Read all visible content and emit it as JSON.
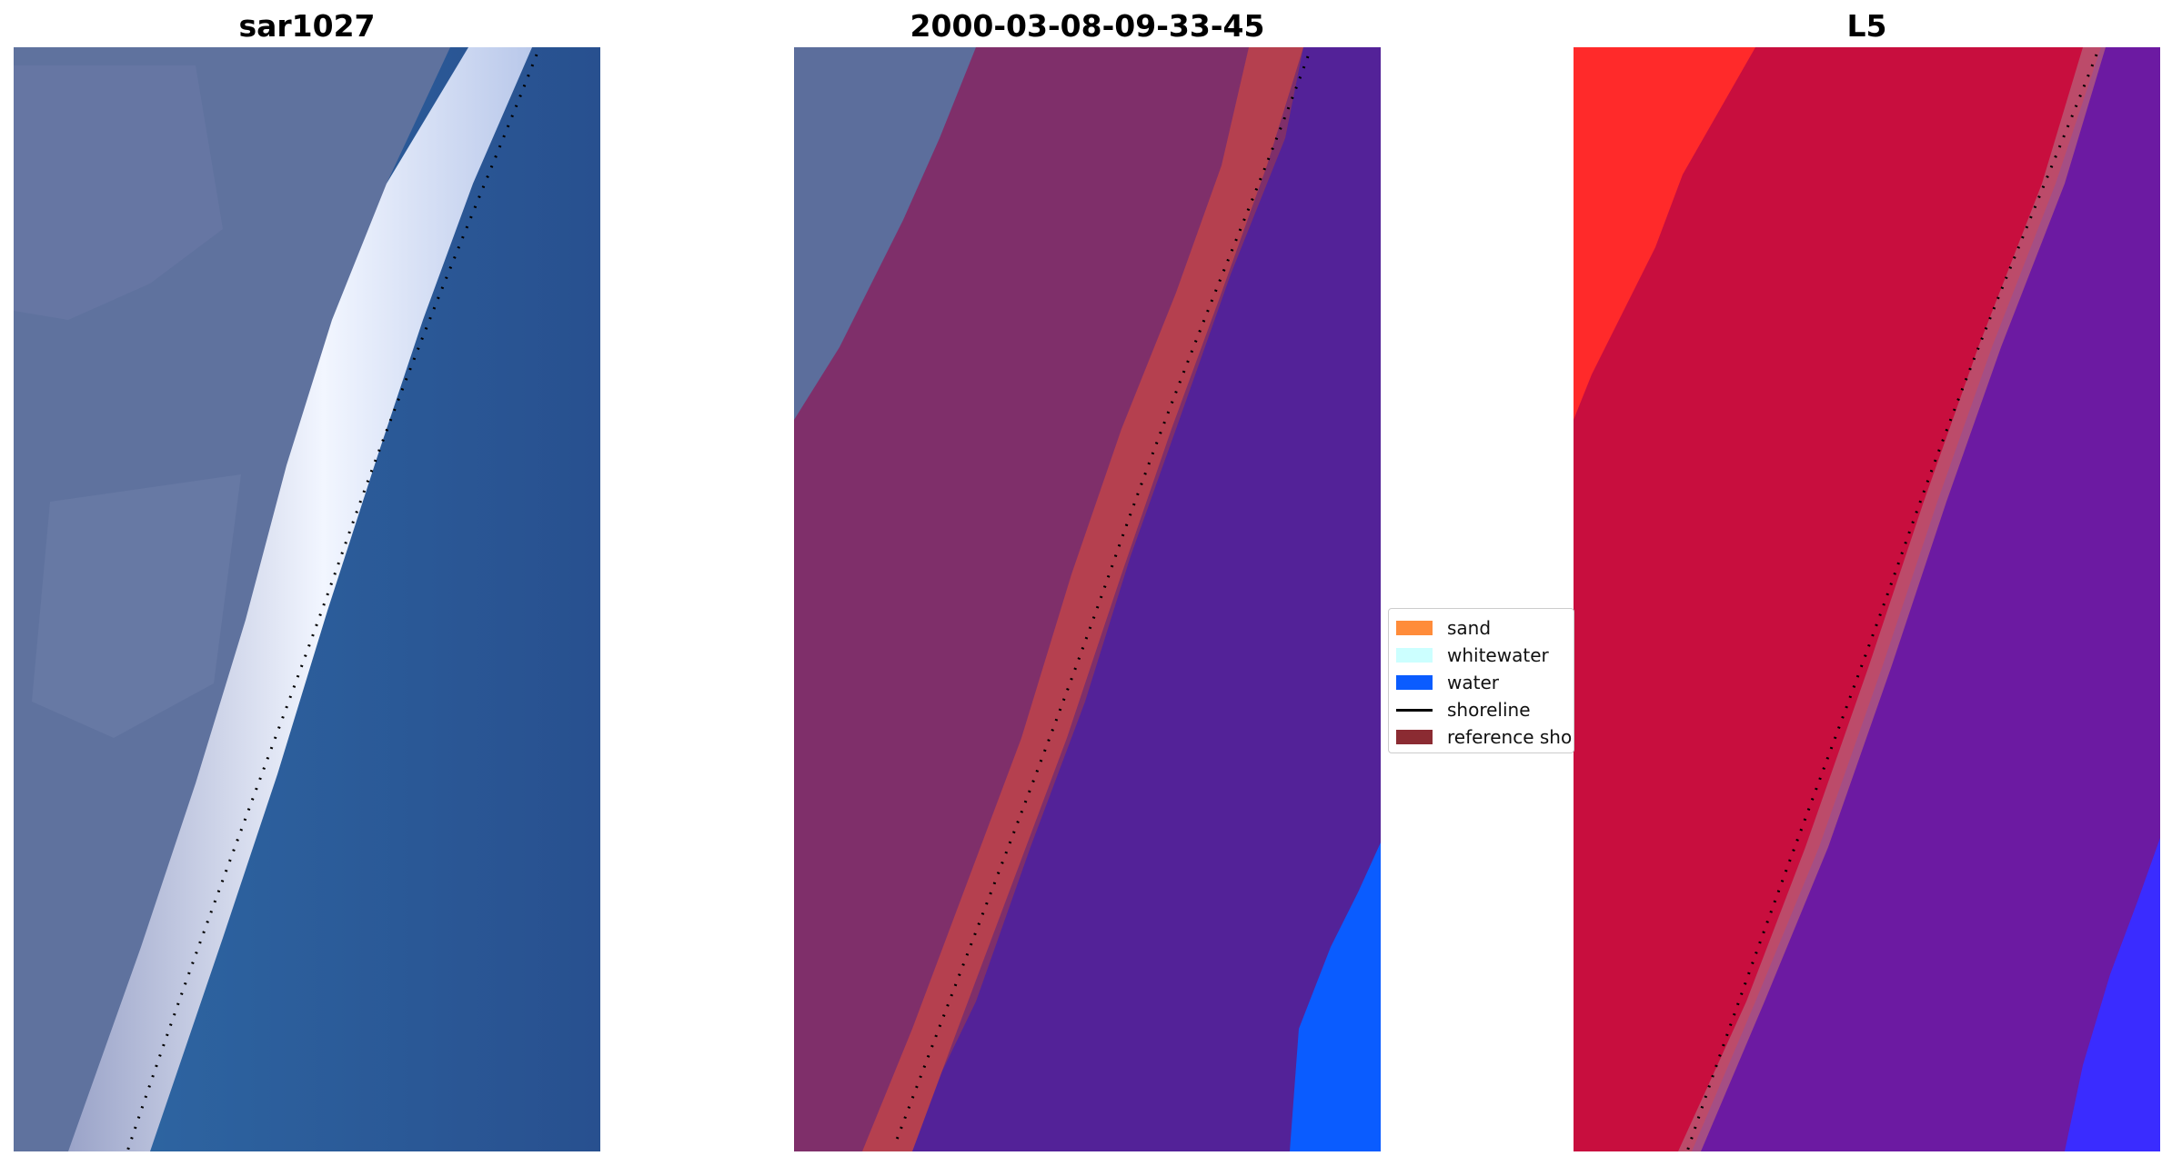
{
  "panels": [
    {
      "title": "sar1027"
    },
    {
      "title": "2000-03-08-09-33-45"
    },
    {
      "title": "L5"
    }
  ],
  "legend": {
    "items": [
      {
        "label": "sand",
        "color": "#ff8c3a",
        "kind": "patch"
      },
      {
        "label": "whitewater",
        "color": "#ccffff",
        "kind": "patch"
      },
      {
        "label": "water",
        "color": "#0a5cff",
        "kind": "patch"
      },
      {
        "label": "shoreline",
        "color": "#000000",
        "kind": "line"
      },
      {
        "label": "reference shoreline",
        "color": "#8b2b32",
        "kind": "patch"
      }
    ]
  },
  "colors": {
    "rgb_land": "#5d6f9a",
    "rgb_beach": "#e6eefc",
    "rgb_water": "#2e6aa4",
    "class_land": "#7f2f6a",
    "class_buffer": "#b5404f",
    "class_water": "#532298",
    "class_water_class": "#0a5cff",
    "index_land": "#c80e3e",
    "index_water": "#6c1aa2",
    "index_bright": "#ff2a2a"
  }
}
